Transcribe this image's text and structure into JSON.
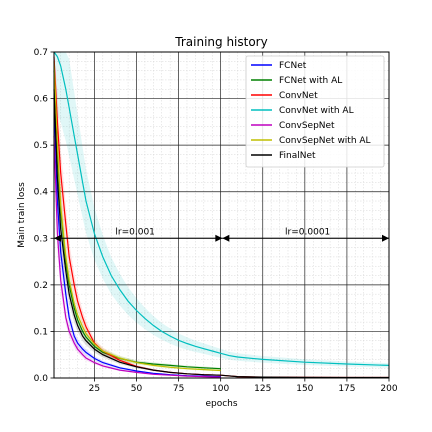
{
  "chart_data": {
    "type": "line",
    "title": "Training history",
    "xlabel": "epochs",
    "ylabel": "Main train loss",
    "xlim": [
      1,
      200
    ],
    "ylim": [
      0,
      0.7
    ],
    "xticks": [
      25,
      50,
      75,
      100,
      125,
      150,
      175,
      200
    ],
    "yticks": [
      0.0,
      0.1,
      0.2,
      0.3,
      0.4,
      0.5,
      0.6,
      0.7
    ],
    "grid": true,
    "minor_grid": true,
    "legend_position": "top-right",
    "series": [
      {
        "name": "FCNet",
        "color": "#0000ff",
        "x": [
          1,
          3,
          5,
          8,
          10,
          13,
          15,
          18,
          20,
          25,
          30,
          40,
          50,
          60,
          70,
          80,
          90,
          100
        ],
        "y": [
          0.6,
          0.38,
          0.27,
          0.18,
          0.13,
          0.09,
          0.075,
          0.062,
          0.055,
          0.042,
          0.033,
          0.022,
          0.015,
          0.01,
          0.007,
          0.005,
          0.004,
          0.003
        ]
      },
      {
        "name": "FCNet with AL",
        "color": "#008000",
        "x": [
          1,
          3,
          5,
          8,
          10,
          13,
          15,
          18,
          20,
          25,
          30,
          40,
          50,
          60,
          70,
          80,
          90,
          100
        ],
        "y": [
          0.66,
          0.48,
          0.36,
          0.25,
          0.2,
          0.15,
          0.125,
          0.1,
          0.088,
          0.068,
          0.055,
          0.042,
          0.034,
          0.03,
          0.027,
          0.024,
          0.022,
          0.02
        ]
      },
      {
        "name": "ConvNet",
        "color": "#ff0000",
        "x": [
          1,
          3,
          5,
          8,
          10,
          13,
          15,
          18,
          20,
          25,
          30,
          40,
          50,
          60,
          70,
          80,
          90,
          100,
          110,
          125,
          150,
          175,
          200
        ],
        "y": [
          0.69,
          0.55,
          0.44,
          0.33,
          0.26,
          0.2,
          0.165,
          0.13,
          0.11,
          0.075,
          0.058,
          0.038,
          0.025,
          0.017,
          0.012,
          0.009,
          0.007,
          0.006,
          0.003,
          0.002,
          0.0015,
          0.001,
          0.001
        ]
      },
      {
        "name": "ConvNet with AL",
        "color": "#00bfbf",
        "x": [
          1,
          3,
          5,
          8,
          10,
          13,
          15,
          18,
          20,
          25,
          30,
          35,
          40,
          45,
          50,
          55,
          60,
          65,
          70,
          75,
          80,
          85,
          90,
          95,
          100,
          105,
          110,
          125,
          150,
          175,
          200
        ],
        "y": [
          0.7,
          0.69,
          0.67,
          0.62,
          0.58,
          0.52,
          0.48,
          0.42,
          0.38,
          0.31,
          0.26,
          0.22,
          0.19,
          0.165,
          0.145,
          0.128,
          0.113,
          0.1,
          0.09,
          0.081,
          0.074,
          0.068,
          0.063,
          0.058,
          0.053,
          0.048,
          0.045,
          0.04,
          0.034,
          0.03,
          0.027
        ]
      },
      {
        "name": "ConvSepNet",
        "color": "#bf00bf",
        "x": [
          1,
          3,
          5,
          8,
          10,
          13,
          15,
          18,
          20,
          25,
          30,
          40,
          50,
          60,
          70,
          80,
          90,
          100
        ],
        "y": [
          0.52,
          0.31,
          0.21,
          0.13,
          0.1,
          0.075,
          0.062,
          0.05,
          0.043,
          0.033,
          0.026,
          0.017,
          0.012,
          0.008,
          0.006,
          0.004,
          0.003,
          0.002
        ]
      },
      {
        "name": "ConvSepNet with AL",
        "color": "#bfbf00",
        "x": [
          1,
          3,
          5,
          8,
          10,
          13,
          15,
          18,
          20,
          25,
          30,
          40,
          50,
          60,
          70,
          80,
          90,
          100
        ],
        "y": [
          0.68,
          0.5,
          0.37,
          0.26,
          0.21,
          0.16,
          0.135,
          0.11,
          0.095,
          0.073,
          0.058,
          0.043,
          0.033,
          0.027,
          0.023,
          0.02,
          0.018,
          0.016
        ]
      },
      {
        "name": "FinalNet",
        "color": "#000000",
        "x": [
          1,
          3,
          5,
          8,
          10,
          13,
          15,
          18,
          20,
          25,
          30,
          40,
          50,
          60,
          70,
          80,
          90,
          100,
          110,
          125,
          150,
          175,
          200
        ],
        "y": [
          0.62,
          0.43,
          0.32,
          0.23,
          0.18,
          0.135,
          0.113,
          0.09,
          0.08,
          0.062,
          0.05,
          0.034,
          0.024,
          0.017,
          0.012,
          0.009,
          0.007,
          0.006,
          0.003,
          0.002,
          0.0015,
          0.001,
          0.001
        ]
      }
    ],
    "annotations": [
      {
        "text": "lr=0.001",
        "x_start": 1,
        "x_end": 101,
        "y": 0.3
      },
      {
        "text": "lr=0.0001",
        "x_start": 101,
        "x_end": 200,
        "y": 0.3
      }
    ]
  }
}
